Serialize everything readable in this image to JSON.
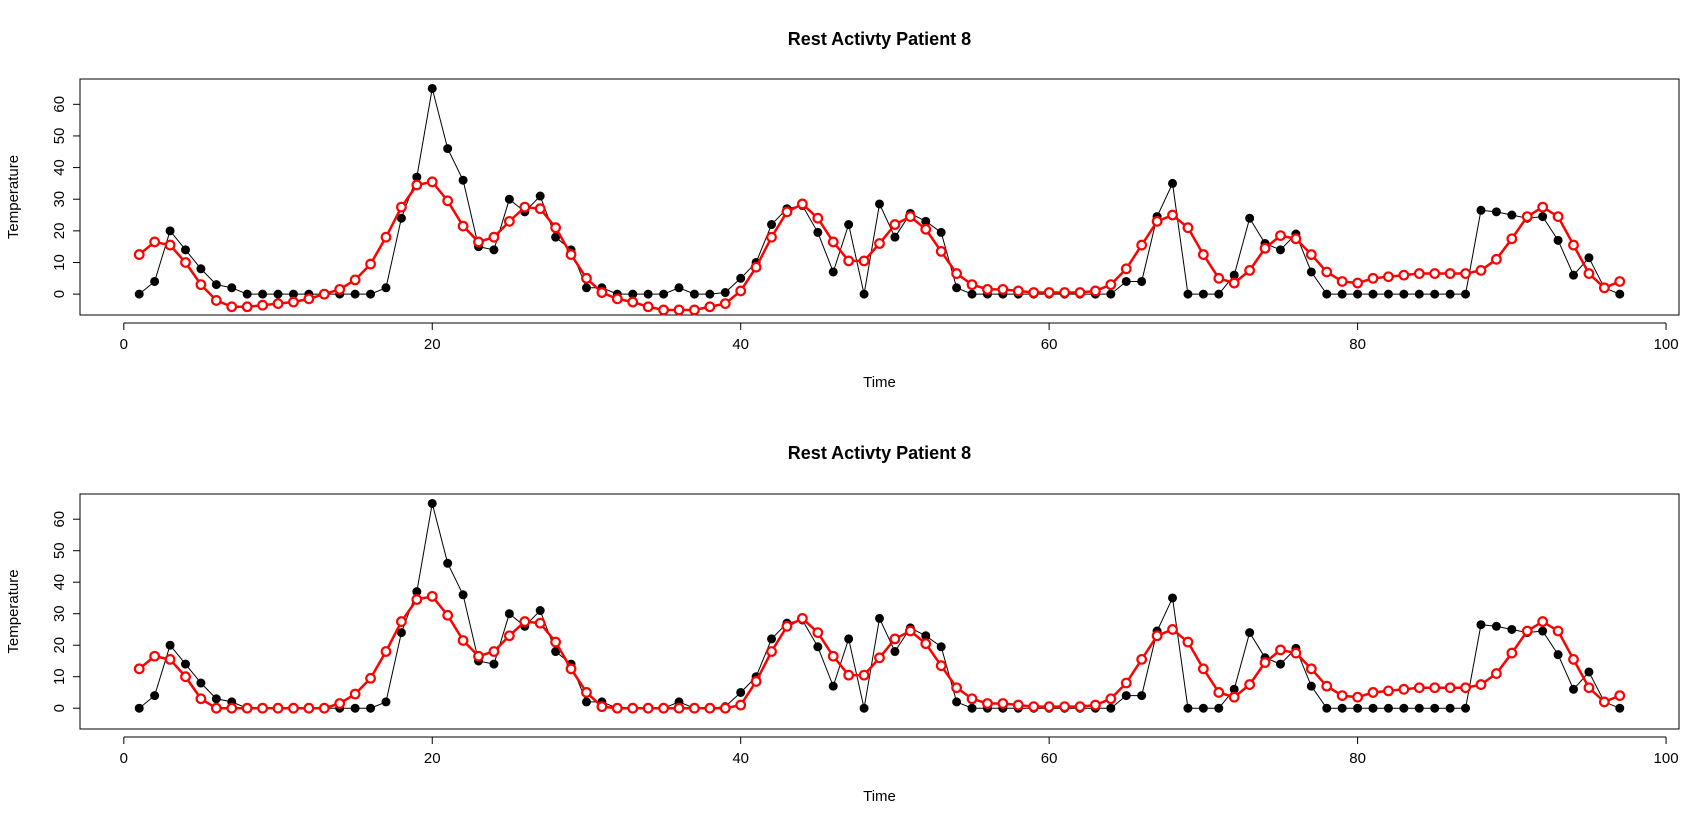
{
  "chart_data": [
    {
      "type": "line",
      "title": "Rest Activty Patient 8",
      "x_label": "Time",
      "y_label": "Temperature",
      "x": [
        1,
        2,
        3,
        4,
        5,
        6,
        7,
        8,
        9,
        10,
        11,
        12,
        13,
        14,
        15,
        16,
        17,
        18,
        19,
        20,
        21,
        22,
        23,
        24,
        25,
        26,
        27,
        28,
        29,
        30,
        31,
        32,
        33,
        34,
        35,
        36,
        37,
        38,
        39,
        40,
        41,
        42,
        43,
        44,
        45,
        46,
        47,
        48,
        49,
        50,
        51,
        52,
        53,
        54,
        55,
        56,
        57,
        58,
        59,
        60,
        61,
        62,
        63,
        64,
        65,
        66,
        67,
        68,
        69,
        70,
        71,
        72,
        73,
        74,
        75,
        76,
        77,
        78,
        79,
        80,
        81,
        82,
        83,
        84,
        85,
        86,
        87,
        88,
        89,
        90,
        91,
        92,
        93,
        94,
        95,
        96,
        97
      ],
      "series": [
        {
          "color": "#000000",
          "marker": "filled",
          "width": 1,
          "values": [
            0,
            4,
            20,
            14,
            8,
            3,
            2,
            0,
            0,
            0,
            0,
            0,
            0,
            0,
            0,
            0,
            2,
            24,
            37,
            65,
            46,
            36,
            15,
            14,
            30,
            26,
            31,
            18,
            14,
            2,
            2,
            0,
            0,
            0,
            0,
            2,
            0,
            0,
            0.5,
            5,
            10,
            22,
            27,
            28,
            19.5,
            7,
            22,
            0,
            28.5,
            18,
            25.5,
            23,
            19.5,
            2,
            0,
            0,
            0,
            0,
            0,
            0,
            0,
            0,
            0,
            0,
            4,
            4,
            24.5,
            35,
            0,
            0,
            0,
            6,
            24,
            16,
            14,
            19,
            7,
            0,
            0,
            0,
            0,
            0,
            0,
            0,
            0,
            0,
            0,
            26.5,
            26,
            25,
            24,
            24.5,
            17,
            6,
            11.5,
            2,
            0
          ]
        },
        {
          "color": "#ff0000",
          "marker": "open",
          "width": 2.5,
          "values": [
            12.5,
            16.5,
            15.5,
            10,
            3,
            -2,
            -4,
            -4,
            -3.5,
            -3,
            -2.5,
            -1.5,
            0,
            1.5,
            4.5,
            9.5,
            18,
            27.5,
            34.5,
            35.5,
            29.5,
            21.5,
            16.5,
            18,
            23,
            27.5,
            27,
            21,
            12.5,
            5,
            0.5,
            -1.5,
            -2.5,
            -4,
            -5,
            -5,
            -5,
            -4,
            -3,
            1,
            8.5,
            18,
            26,
            28.5,
            24,
            16.5,
            10.5,
            10.5,
            16,
            22,
            24.5,
            20.5,
            13.5,
            6.5,
            3,
            1.5,
            1.5,
            1,
            0.5,
            0.5,
            0.5,
            0.5,
            1,
            3,
            8,
            15.5,
            23,
            25,
            21,
            12.5,
            5,
            3.5,
            7.5,
            14.5,
            18.5,
            17.5,
            12.5,
            7,
            4,
            3.5,
            5,
            5.5,
            6,
            6.5,
            6.5,
            6.5,
            6.5,
            7.5,
            11,
            17.5,
            24.5,
            27.5,
            24.5,
            15.5,
            6.5,
            2,
            4
          ]
        }
      ],
      "xlim": [
        -2.84,
        100.84
      ],
      "ylim": [
        -6.6,
        68
      ],
      "xticks": [
        0,
        20,
        40,
        60,
        80,
        100
      ],
      "yticks": [
        0,
        10,
        20,
        30,
        40,
        50,
        60
      ]
    },
    {
      "type": "line",
      "title": "Rest Activty Patient 8",
      "x_label": "Time",
      "y_label": "Temperature",
      "x": [
        1,
        2,
        3,
        4,
        5,
        6,
        7,
        8,
        9,
        10,
        11,
        12,
        13,
        14,
        15,
        16,
        17,
        18,
        19,
        20,
        21,
        22,
        23,
        24,
        25,
        26,
        27,
        28,
        29,
        30,
        31,
        32,
        33,
        34,
        35,
        36,
        37,
        38,
        39,
        40,
        41,
        42,
        43,
        44,
        45,
        46,
        47,
        48,
        49,
        50,
        51,
        52,
        53,
        54,
        55,
        56,
        57,
        58,
        59,
        60,
        61,
        62,
        63,
        64,
        65,
        66,
        67,
        68,
        69,
        70,
        71,
        72,
        73,
        74,
        75,
        76,
        77,
        78,
        79,
        80,
        81,
        82,
        83,
        84,
        85,
        86,
        87,
        88,
        89,
        90,
        91,
        92,
        93,
        94,
        95,
        96,
        97
      ],
      "series": [
        {
          "color": "#000000",
          "marker": "filled",
          "width": 1,
          "values": [
            0,
            4,
            20,
            14,
            8,
            3,
            2,
            0,
            0,
            0,
            0,
            0,
            0,
            0,
            0,
            0,
            2,
            24,
            37,
            65,
            46,
            36,
            15,
            14,
            30,
            26,
            31,
            18,
            14,
            2,
            2,
            0,
            0,
            0,
            0,
            2,
            0,
            0,
            0.5,
            5,
            10,
            22,
            27,
            28,
            19.5,
            7,
            22,
            0,
            28.5,
            18,
            25.5,
            23,
            19.5,
            2,
            0,
            0,
            0,
            0,
            0,
            0,
            0,
            0,
            0,
            0,
            4,
            4,
            24.5,
            35,
            0,
            0,
            0,
            6,
            24,
            16,
            14,
            19,
            7,
            0,
            0,
            0,
            0,
            0,
            0,
            0,
            0,
            0,
            0,
            26.5,
            26,
            25,
            24,
            24.5,
            17,
            6,
            11.5,
            2,
            0
          ]
        },
        {
          "color": "#ff0000",
          "marker": "open",
          "width": 2.5,
          "values": [
            12.5,
            16.5,
            15.5,
            10,
            3,
            0,
            0,
            0,
            0,
            0,
            0,
            0,
            0,
            1.5,
            4.5,
            9.5,
            18,
            27.5,
            34.5,
            35.5,
            29.5,
            21.5,
            16.5,
            18,
            23,
            27.5,
            27,
            21,
            12.5,
            5,
            0.5,
            0,
            0,
            0,
            0,
            0,
            0,
            0,
            0,
            1,
            8.5,
            18,
            26,
            28.5,
            24,
            16.5,
            10.5,
            10.5,
            16,
            22,
            24.5,
            20.5,
            13.5,
            6.5,
            3,
            1.5,
            1.5,
            1,
            0.5,
            0.5,
            0.5,
            0.5,
            1,
            3,
            8,
            15.5,
            23,
            25,
            21,
            12.5,
            5,
            3.5,
            7.5,
            14.5,
            18.5,
            17.5,
            12.5,
            7,
            4,
            3.5,
            5,
            5.5,
            6,
            6.5,
            6.5,
            6.5,
            6.5,
            7.5,
            11,
            17.5,
            24.5,
            27.5,
            24.5,
            15.5,
            6.5,
            2,
            4
          ]
        }
      ],
      "xlim": [
        -2.84,
        100.84
      ],
      "ylim": [
        -6.6,
        68
      ],
      "xticks": [
        0,
        20,
        40,
        60,
        80,
        100
      ],
      "yticks": [
        0,
        10,
        20,
        30,
        40,
        50,
        60
      ]
    }
  ]
}
